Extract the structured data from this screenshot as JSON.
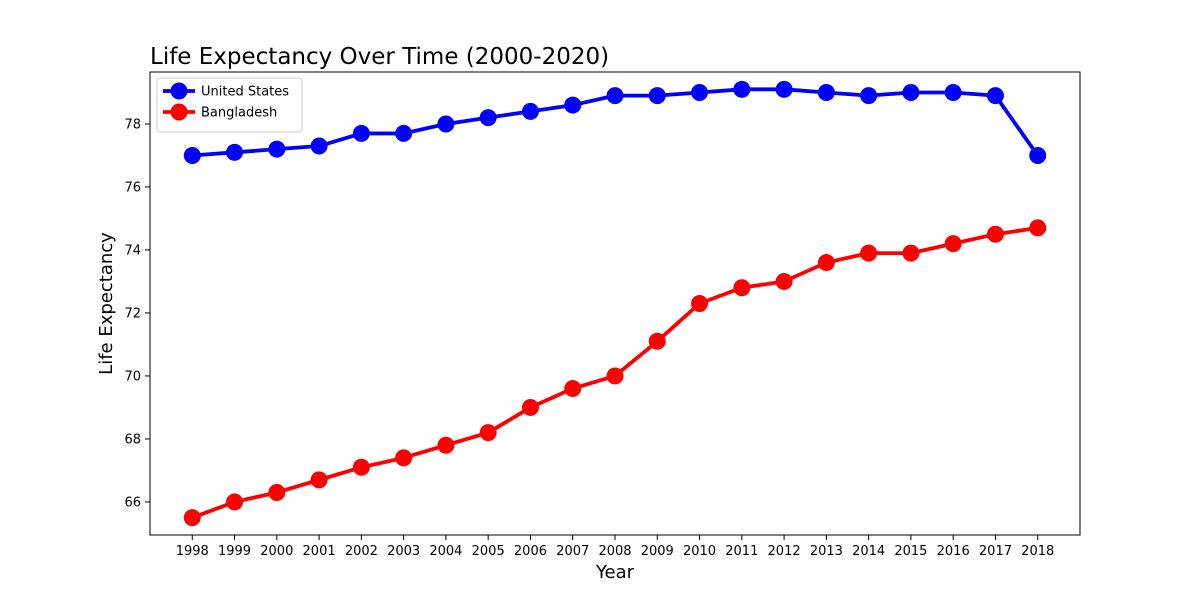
{
  "chart_data": {
    "type": "line",
    "title": "Life Expectancy Over Time (2000-2020)",
    "xlabel": "Year",
    "ylabel": "Life Expectancy",
    "x": [
      1998,
      1999,
      2000,
      2001,
      2002,
      2003,
      2004,
      2005,
      2006,
      2007,
      2008,
      2009,
      2010,
      2011,
      2012,
      2013,
      2014,
      2015,
      2016,
      2017,
      2018
    ],
    "xlim": [
      1997.0,
      2019.0
    ],
    "ylim": [
      64.95,
      79.65
    ],
    "yticks": [
      66,
      68,
      70,
      72,
      74,
      76,
      78
    ],
    "grid": false,
    "legend_position": "top-left",
    "series": [
      {
        "name": "United States",
        "color": "#0000ff",
        "marker": "circle",
        "values": [
          77.0,
          77.1,
          77.2,
          77.3,
          77.7,
          77.7,
          78.0,
          78.2,
          78.4,
          78.6,
          78.9,
          78.9,
          79.0,
          79.1,
          79.1,
          79.0,
          78.9,
          79.0,
          79.0,
          78.9,
          77.0
        ]
      },
      {
        "name": "Bangladesh",
        "color": "#ff0000",
        "marker": "circle",
        "values": [
          65.5,
          66.0,
          66.3,
          66.7,
          67.1,
          67.4,
          67.8,
          68.2,
          69.0,
          69.6,
          70.0,
          71.1,
          72.3,
          72.8,
          73.0,
          73.6,
          73.9,
          73.9,
          74.2,
          74.5,
          74.7
        ]
      }
    ]
  }
}
